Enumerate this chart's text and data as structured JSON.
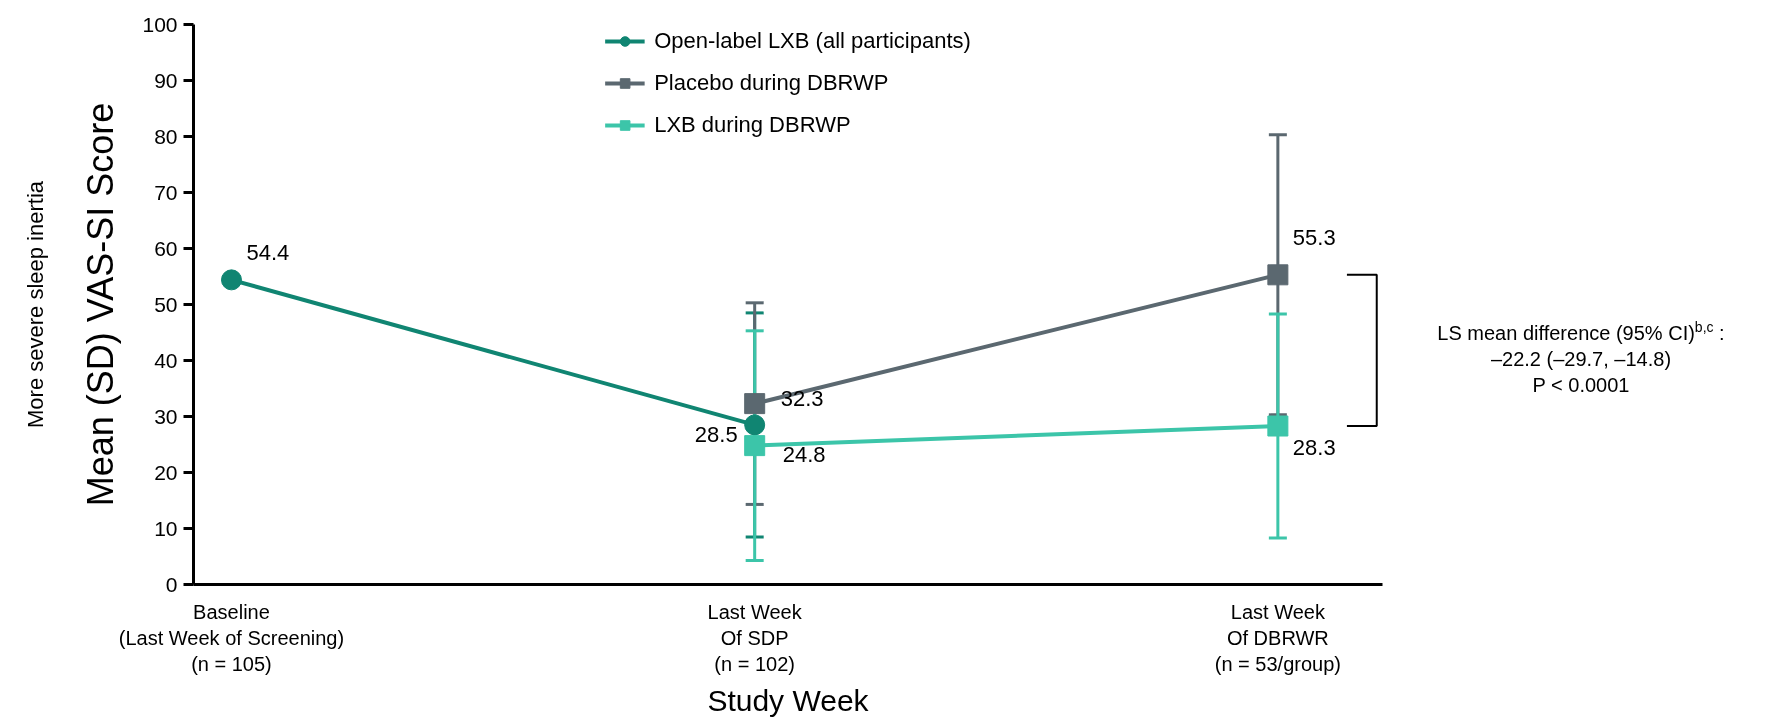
{
  "chart_data": {
    "type": "line",
    "xlabel": "Study Week",
    "ylabel": "Mean (SD) VAS-SI Score",
    "categories": [
      "Baseline\n(Last Week of Screening)\n(n = 105)",
      "Last Week\nOf SDP\n(n = 102)",
      "Last Week\nOf DBRWR\n(n = 53/group)"
    ],
    "series": [
      {
        "name": "Open-label LXB (all participants)",
        "color": "#108572",
        "marker": "circle",
        "values": [
          54.4,
          28.5,
          null
        ],
        "errors": [
          null,
          20,
          null
        ]
      },
      {
        "name": "Placebo during DBRWP",
        "color": "#5b6870",
        "marker": "square",
        "values": [
          null,
          32.3,
          55.3
        ],
        "errors": [
          null,
          18,
          25
        ]
      },
      {
        "name": "LXB during DBRWP",
        "color": "#3cc5a9",
        "marker": "square",
        "values": [
          null,
          24.8,
          28.3
        ],
        "errors": [
          null,
          20.5,
          20
        ]
      }
    ],
    "ylim": [
      0,
      100
    ],
    "yticks": [
      0,
      10,
      20,
      30,
      40,
      50,
      60,
      70,
      80,
      90,
      100
    ],
    "grid": false,
    "legend": "top",
    "data_labels": true,
    "annotations": [
      "More severe sleep inertia",
      "LS mean difference (95% CI)$^{b,c}$ :\n–22.2 (–29.7, –14.8)\nP < 0.0001"
    ]
  }
}
